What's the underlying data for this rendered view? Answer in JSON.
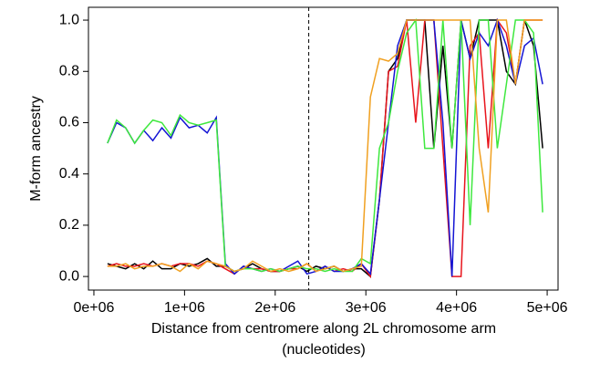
{
  "chart_data": {
    "type": "line",
    "y_label": "M-form ancestry",
    "x_label": [
      "Distance from centromere along 2L chromosome arm",
      "(nucleotides)"
    ],
    "x": [
      150000,
      250000,
      350000,
      450000,
      550000,
      650000,
      750000,
      850000,
      950000,
      1050000,
      1150000,
      1250000,
      1350000,
      1450000,
      1550000,
      1650000,
      1750000,
      1850000,
      1950000,
      2050000,
      2150000,
      2250000,
      2350000,
      2450000,
      2550000,
      2650000,
      2750000,
      2850000,
      2950000,
      3050000,
      3150000,
      3250000,
      3350000,
      3450000,
      3550000,
      3650000,
      3750000,
      3850000,
      3950000,
      4050000,
      4150000,
      4250000,
      4350000,
      4450000,
      4550000,
      4650000,
      4750000,
      4850000,
      4950000
    ],
    "series": [
      {
        "color": "#000000",
        "values": [
          0.05,
          0.04,
          0.03,
          0.05,
          0.03,
          0.06,
          0.03,
          0.03,
          0.05,
          0.04,
          0.05,
          0.07,
          0.04,
          0.04,
          0.02,
          0.03,
          0.05,
          0.03,
          0.02,
          0.02,
          0.03,
          0.04,
          0.02,
          0.04,
          0.03,
          0.04,
          0.02,
          0.03,
          0.03,
          0.0,
          0.3,
          0.8,
          0.85,
          1.0,
          1.0,
          1.0,
          0.5,
          0.9,
          0.5,
          1.0,
          0.85,
          1.0,
          1.0,
          1.0,
          0.8,
          0.75,
          1.0,
          0.9,
          0.5
        ]
      },
      {
        "color": "#e8141c",
        "values": [
          0.04,
          0.05,
          0.04,
          0.04,
          0.05,
          0.04,
          0.05,
          0.04,
          0.05,
          0.05,
          0.04,
          0.06,
          0.05,
          0.03,
          0.01,
          0.04,
          0.03,
          0.03,
          0.02,
          0.02,
          0.03,
          0.03,
          0.05,
          0.02,
          0.04,
          0.02,
          0.03,
          0.02,
          0.05,
          0.0,
          0.3,
          0.8,
          0.82,
          1.0,
          0.6,
          1.0,
          1.0,
          0.5,
          0.0,
          0.0,
          0.9,
          0.95,
          0.5,
          1.0,
          0.95,
          0.75,
          1.0,
          1.0,
          1.0
        ]
      },
      {
        "color": "#1414d4",
        "values": [
          0.52,
          0.6,
          0.58,
          0.52,
          0.57,
          0.53,
          0.58,
          0.54,
          0.62,
          0.58,
          0.59,
          0.56,
          0.62,
          0.05,
          0.01,
          0.04,
          0.03,
          0.02,
          0.03,
          0.02,
          0.04,
          0.06,
          0.01,
          0.02,
          0.04,
          0.02,
          0.02,
          0.03,
          0.05,
          0.01,
          0.3,
          0.6,
          0.9,
          1.0,
          1.0,
          1.0,
          1.0,
          0.6,
          0.0,
          1.0,
          0.85,
          0.95,
          0.9,
          1.0,
          0.9,
          0.75,
          0.9,
          0.93,
          0.75
        ]
      },
      {
        "color": "#3ee83e",
        "values": [
          0.52,
          0.61,
          0.58,
          0.52,
          0.57,
          0.61,
          0.6,
          0.55,
          0.63,
          0.6,
          0.59,
          0.6,
          0.61,
          0.04,
          0.02,
          0.03,
          0.03,
          0.02,
          0.03,
          0.02,
          0.03,
          0.04,
          0.03,
          0.03,
          0.02,
          0.03,
          0.02,
          0.02,
          0.07,
          0.05,
          0.5,
          0.6,
          0.8,
          0.95,
          1.0,
          0.5,
          0.5,
          1.0,
          0.5,
          1.0,
          0.2,
          1.0,
          1.0,
          0.5,
          0.75,
          1.0,
          1.0,
          0.95,
          0.25
        ]
      },
      {
        "color": "#f0a020",
        "values": [
          0.04,
          0.04,
          0.05,
          0.03,
          0.04,
          0.04,
          0.05,
          0.04,
          0.02,
          0.05,
          0.03,
          0.06,
          0.05,
          0.04,
          0.02,
          0.03,
          0.06,
          0.04,
          0.02,
          0.03,
          0.02,
          0.03,
          0.05,
          0.02,
          0.03,
          0.04,
          0.02,
          0.03,
          0.04,
          0.7,
          0.85,
          0.84,
          0.87,
          1.0,
          1.0,
          1.0,
          1.0,
          1.0,
          1.0,
          1.0,
          1.0,
          0.5,
          0.25,
          1.0,
          1.0,
          0.75,
          1.0,
          1.0,
          1.0
        ]
      }
    ],
    "vline": 2370000,
    "xlim": [
      -60000,
      5120000
    ],
    "ylim": [
      -0.053,
      1.05
    ],
    "xticks": [
      {
        "value": 0,
        "label": "0e+06"
      },
      {
        "value": 1000000,
        "label": "1e+06"
      },
      {
        "value": 2000000,
        "label": "2e+06"
      },
      {
        "value": 3000000,
        "label": "3e+06"
      },
      {
        "value": 4000000,
        "label": "4e+06"
      },
      {
        "value": 5000000,
        "label": "5e+06"
      }
    ],
    "yticks": [
      {
        "value": 0,
        "label": "0.0"
      },
      0.2,
      0.4,
      0.6,
      0.8,
      {
        "value": 1,
        "label": "1.0"
      }
    ]
  }
}
